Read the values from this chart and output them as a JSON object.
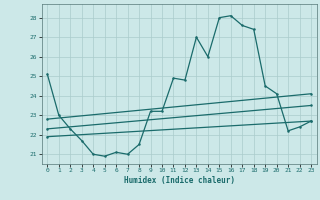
{
  "title": "",
  "xlabel": "Humidex (Indice chaleur)",
  "ylabel": "",
  "background_color": "#cce8e8",
  "grid_color": "#aacccc",
  "line_color": "#1a6b6b",
  "xlim": [
    -0.5,
    23.5
  ],
  "ylim": [
    20.5,
    28.7
  ],
  "yticks": [
    21,
    22,
    23,
    24,
    25,
    26,
    27,
    28
  ],
  "xticks": [
    0,
    1,
    2,
    3,
    4,
    5,
    6,
    7,
    8,
    9,
    10,
    11,
    12,
    13,
    14,
    15,
    16,
    17,
    18,
    19,
    20,
    21,
    22,
    23
  ],
  "line1_x": [
    0,
    1,
    2,
    3,
    4,
    5,
    6,
    7,
    8,
    9,
    10,
    11,
    12,
    13,
    14,
    15,
    16,
    17,
    18,
    19,
    20,
    21,
    22,
    23
  ],
  "line1_y": [
    25.1,
    23.0,
    22.3,
    21.7,
    21.0,
    20.9,
    21.1,
    21.0,
    21.5,
    23.2,
    23.2,
    24.9,
    24.8,
    27.0,
    26.0,
    28.0,
    28.1,
    27.6,
    27.4,
    24.5,
    24.1,
    22.2,
    22.4,
    22.7
  ],
  "line2_x": [
    0,
    23
  ],
  "line2_y": [
    22.8,
    24.1
  ],
  "line3_x": [
    0,
    23
  ],
  "line3_y": [
    22.3,
    23.5
  ],
  "line4_x": [
    0,
    23
  ],
  "line4_y": [
    21.9,
    22.7
  ]
}
